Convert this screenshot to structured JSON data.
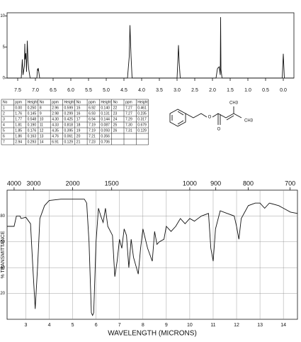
{
  "chart_data": [
    {
      "type": "line",
      "x": [
        7.8,
        7.4,
        7.37,
        7.35,
        7.31,
        7.3,
        7.29,
        7.27,
        7.25,
        7.23,
        7.21,
        7.19,
        7.15,
        6.96,
        6.94,
        6.93,
        6.92,
        6.91,
        6.88,
        4.4,
        4.35,
        4.33,
        4.3,
        4.27,
        3.0,
        2.98,
        2.96,
        2.94,
        2.91,
        1.9,
        1.86,
        1.85,
        1.81,
        1.78,
        1.77,
        1.76,
        1.73,
        0.03,
        0.0,
        -0.03,
        -0.3
      ],
      "values": [
        0,
        0,
        3,
        0.5,
        2,
        5.5,
        3,
        4,
        1,
        6,
        3,
        1.5,
        0,
        0,
        1.5,
        1.2,
        1.6,
        1.2,
        0,
        0,
        3.5,
        8.5,
        3.6,
        0,
        0,
        2.5,
        5.3,
        2.5,
        0,
        0,
        1.5,
        1.6,
        1.8,
        0.5,
        9.8,
        1.4,
        0,
        0,
        3.9,
        0,
        0
      ],
      "color": "#111111",
      "xlim": [
        7.8,
        -0.3
      ],
      "xticks": [
        7.5,
        {
          "value": 7,
          "label": "7.0"
        },
        6.5,
        {
          "value": 6,
          "label": "6.0"
        },
        5.5,
        {
          "value": 5,
          "label": "5.0"
        },
        4.5,
        {
          "value": 4,
          "label": "4.0"
        },
        3.5,
        {
          "value": 3,
          "label": "3.0"
        },
        2.5,
        {
          "value": 2,
          "label": "2.0"
        },
        1.5,
        {
          "value": 1,
          "label": "1.0"
        },
        0.5,
        {
          "value": 0,
          "label": "0.0"
        }
      ],
      "ylim": [
        0,
        10.5
      ],
      "yticks": [
        0,
        5,
        10
      ]
    },
    {
      "type": "line",
      "x": [
        2.2,
        2.5,
        2.6,
        2.75,
        2.8,
        3.0,
        3.2,
        3.3,
        3.4,
        3.5,
        3.6,
        3.8,
        4.0,
        4.5,
        5.0,
        5.5,
        5.6,
        5.7,
        5.8,
        5.85,
        5.9,
        6.0,
        6.1,
        6.2,
        6.3,
        6.4,
        6.5,
        6.7,
        6.8,
        6.9,
        7.0,
        7.1,
        7.2,
        7.3,
        7.4,
        7.5,
        7.6,
        7.8,
        7.9,
        8.0,
        8.2,
        8.4,
        8.5,
        8.6,
        8.7,
        8.9,
        9.0,
        9.2,
        9.4,
        9.6,
        9.8,
        10.0,
        10.2,
        10.5,
        10.8,
        10.9,
        11.0,
        11.1,
        11.3,
        11.6,
        11.9,
        12.0,
        12.1,
        12.2,
        12.5,
        12.8,
        13.0,
        13.2,
        13.4,
        13.8,
        14.0,
        14.3,
        14.6
      ],
      "values": [
        72,
        72,
        80,
        80,
        78,
        79,
        74,
        40,
        8,
        40,
        78,
        88,
        92,
        93,
        93,
        93,
        90,
        60,
        5,
        3,
        5,
        60,
        86,
        80,
        75,
        86,
        72,
        65,
        33,
        45,
        62,
        55,
        70,
        65,
        40,
        62,
        48,
        35,
        55,
        70,
        55,
        45,
        68,
        58,
        60,
        62,
        72,
        68,
        72,
        78,
        74,
        78,
        76,
        80,
        82,
        55,
        45,
        70,
        84,
        82,
        80,
        72,
        62,
        78,
        88,
        90,
        90,
        86,
        90,
        88,
        86,
        83,
        82
      ],
      "color": "#111111",
      "xlabel": "WAVELENGTH (MICRONS)",
      "ylabel": "% TRANSMITTANCE",
      "xlim": [
        2.2,
        14.6
      ],
      "xticks": [
        3,
        4,
        5,
        6,
        7,
        8,
        9,
        10,
        11,
        12,
        13,
        14
      ],
      "x2ticks": [
        4000,
        3000,
        2000,
        1500,
        1000,
        900,
        800,
        700
      ],
      "ylim": [
        0,
        100
      ],
      "yticks": [
        20,
        40,
        60,
        80
      ],
      "grid": true
    }
  ],
  "peak_table": {
    "header": [
      "No",
      "ppm",
      "Height",
      "No",
      "ppm",
      "Height",
      "No",
      "ppm",
      "Height",
      "No",
      "ppm",
      "Height"
    ],
    "rows": [
      [
        "1",
        "0.00",
        "0.250",
        "8",
        "2.96",
        "0.599",
        "15",
        "6.92",
        "0.140",
        "22",
        "7.27",
        "0.461"
      ],
      [
        "2",
        "1.76",
        "0.145",
        "9",
        "2.98",
        "0.299",
        "16",
        "6.93",
        "0.131",
        "23",
        "7.27",
        "0.235"
      ],
      [
        "3",
        "1.77",
        "0.548",
        "10",
        "4.30",
        "0.425",
        "17",
        "6.94",
        "0.144",
        "24",
        "7.29",
        "0.317"
      ],
      [
        "4",
        "1.81",
        "0.190",
        "11",
        "4.33",
        "0.818",
        "18",
        "7.19",
        "0.087",
        "25",
        "7.30",
        "0.679"
      ],
      [
        "5",
        "1.85",
        "0.176",
        "12",
        "4.35",
        "0.395",
        "19",
        "7.19",
        "0.093",
        "26",
        "7.31",
        "0.129"
      ],
      [
        "6",
        "1.86",
        "0.163",
        "13",
        "4.76",
        "0.061",
        "20",
        "7.21",
        "0.356"
      ],
      [
        "7",
        "2.94",
        "0.293",
        "14",
        "6.91",
        "0.129",
        "21",
        "7.23",
        "0.706"
      ]
    ]
  },
  "structure": {
    "labels": [
      "CH3",
      "O",
      "O",
      "CH3"
    ]
  }
}
